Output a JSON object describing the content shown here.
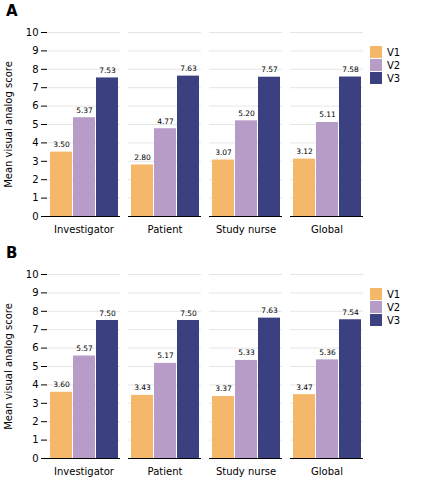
{
  "chart_data": [
    {
      "type": "bar",
      "title": "A",
      "categories": [
        "Investigator",
        "Patient",
        "Study nurse",
        "Global"
      ],
      "series": [
        {
          "name": "V1",
          "color": "#F5B86A",
          "values": [
            3.5,
            2.8,
            3.07,
            3.12
          ],
          "value_labels": [
            "3.50",
            "2.80",
            "3.07",
            "3.12"
          ]
        },
        {
          "name": "V2",
          "color": "#B89CC8",
          "values": [
            5.37,
            4.77,
            5.2,
            5.11
          ],
          "value_labels": [
            "5.37",
            "4.77",
            "5.20",
            "5.11"
          ]
        },
        {
          "name": "V3",
          "color": "#3B4080",
          "values": [
            7.53,
            7.63,
            7.57,
            7.58
          ],
          "value_labels": [
            "7.53",
            "7.63",
            "7.57",
            "7.58"
          ]
        }
      ],
      "ylabel": "Mean visual analog score",
      "ylim": [
        0,
        10
      ],
      "yticks": [
        0,
        1,
        2,
        3,
        4,
        5,
        6,
        7,
        8,
        9,
        10
      ],
      "grid": true,
      "legend": "right",
      "data_labels": true
    },
    {
      "type": "bar",
      "title": "B",
      "categories": [
        "Investigator",
        "Patient",
        "Study nurse",
        "Global"
      ],
      "series": [
        {
          "name": "V1",
          "color": "#F5B86A",
          "values": [
            3.6,
            3.43,
            3.37,
            3.47
          ],
          "value_labels": [
            "3.60",
            "3.43",
            "3.37",
            "3.47"
          ]
        },
        {
          "name": "V2",
          "color": "#B89CC8",
          "values": [
            5.57,
            5.17,
            5.33,
            5.36
          ],
          "value_labels": [
            "5.57",
            "5.17",
            "5.33",
            "5.36"
          ]
        },
        {
          "name": "V3",
          "color": "#3B4080",
          "values": [
            7.5,
            7.5,
            7.63,
            7.54
          ],
          "value_labels": [
            "7.50",
            "7.50",
            "7.63",
            "7.54"
          ]
        }
      ],
      "ylabel": "Mean visual analog score",
      "ylim": [
        0,
        10
      ],
      "yticks": [
        0,
        1,
        2,
        3,
        4,
        5,
        6,
        7,
        8,
        9,
        10
      ],
      "grid": true,
      "legend": "right",
      "data_labels": true
    }
  ]
}
